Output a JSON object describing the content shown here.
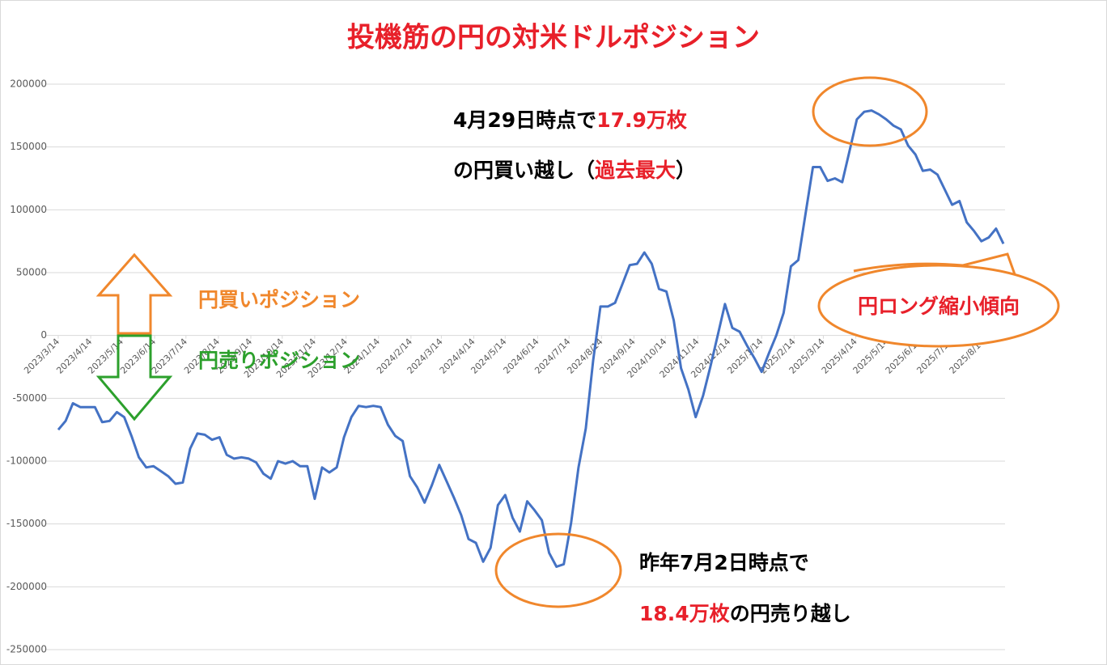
{
  "chart_data": {
    "type": "line",
    "title": "投機筋の円の対米ドルポジション",
    "x": [
      "2023/3/14",
      "2023/3/21",
      "2023/3/28",
      "2023/4/4",
      "2023/4/11",
      "2023/4/18",
      "2023/4/25",
      "2023/5/2",
      "2023/5/9",
      "2023/5/16",
      "2023/5/23",
      "2023/5/30",
      "2023/6/6",
      "2023/6/13",
      "2023/6/20",
      "2023/6/27",
      "2023/7/4",
      "2023/7/11",
      "2023/7/18",
      "2023/7/25",
      "2023/8/1",
      "2023/8/8",
      "2023/8/15",
      "2023/8/22",
      "2023/8/29",
      "2023/9/5",
      "2023/9/12",
      "2023/9/19",
      "2023/9/26",
      "2023/10/3",
      "2023/10/10",
      "2023/10/17",
      "2023/10/24",
      "2023/10/31",
      "2023/11/7",
      "2023/11/14",
      "2023/11/21",
      "2023/11/28",
      "2023/12/5",
      "2023/12/12",
      "2023/12/19",
      "2023/12/26",
      "2024/1/2",
      "2024/1/9",
      "2024/1/16",
      "2024/1/23",
      "2024/1/30",
      "2024/2/6",
      "2024/2/13",
      "2024/2/20",
      "2024/2/27",
      "2024/3/5",
      "2024/3/12",
      "2024/3/19",
      "2024/3/26",
      "2024/4/2",
      "2024/4/9",
      "2024/4/16",
      "2024/4/23",
      "2024/4/30",
      "2024/5/7",
      "2024/5/14",
      "2024/5/21",
      "2024/5/28",
      "2024/6/4",
      "2024/6/11",
      "2024/6/18",
      "2024/6/25",
      "2024/7/2",
      "2024/7/9",
      "2024/7/16",
      "2024/7/23",
      "2024/7/30",
      "2024/8/6",
      "2024/8/13",
      "2024/8/20",
      "2024/8/27",
      "2024/9/3",
      "2024/9/10",
      "2024/9/17",
      "2024/9/24",
      "2024/10/1",
      "2024/10/8",
      "2024/10/15",
      "2024/10/22",
      "2024/10/29",
      "2024/11/5",
      "2024/11/12",
      "2024/11/19",
      "2024/11/26",
      "2024/12/3",
      "2024/12/10",
      "2024/12/17",
      "2024/12/24",
      "2024/12/31",
      "2025/1/7",
      "2025/1/14",
      "2025/1/21",
      "2025/1/28",
      "2025/2/4",
      "2025/2/11",
      "2025/2/18",
      "2025/2/25",
      "2025/3/4",
      "2025/3/11",
      "2025/3/18",
      "2025/3/25",
      "2025/4/1",
      "2025/4/8",
      "2025/4/15",
      "2025/4/22",
      "2025/4/29",
      "2025/5/6",
      "2025/5/13",
      "2025/5/20",
      "2025/5/27",
      "2025/6/3",
      "2025/6/10",
      "2025/6/17",
      "2025/6/24",
      "2025/7/1",
      "2025/7/8",
      "2025/7/15",
      "2025/7/22",
      "2025/7/29",
      "2025/8/5",
      "2025/8/12",
      "2025/8/19",
      "2025/8/26",
      "2025/9/2"
    ],
    "series": [
      {
        "color": "#4472c4",
        "values": [
          -75000,
          -68000,
          -54000,
          -57000,
          -57000,
          -57000,
          -69000,
          -68000,
          -61000,
          -65000,
          -80000,
          -97000,
          -105000,
          -104000,
          -108000,
          -112000,
          -118000,
          -117000,
          -90000,
          -78000,
          -79000,
          -83000,
          -81000,
          -95000,
          -98000,
          -97000,
          -98000,
          -101000,
          -110000,
          -114000,
          -100000,
          -102000,
          -100000,
          -104000,
          -104000,
          -130000,
          -105000,
          -109000,
          -105000,
          -81000,
          -65000,
          -56000,
          -57000,
          -56000,
          -57000,
          -71000,
          -80000,
          -84000,
          -112000,
          -121000,
          -133000,
          -119000,
          -103000,
          -116000,
          -129000,
          -143000,
          -162000,
          -165000,
          -180000,
          -169000,
          -135000,
          -127000,
          -145000,
          -156000,
          -132000,
          -139000,
          -147000,
          -173000,
          -184000,
          -182000,
          -149000,
          -105000,
          -74000,
          -20000,
          23000,
          23000,
          26000,
          41000,
          56000,
          57000,
          66000,
          57000,
          37000,
          35000,
          12000,
          -26000,
          -43000,
          -65000,
          -48000,
          -25000,
          0,
          25000,
          6000,
          3000,
          -8000,
          -18000,
          -29000,
          -14000,
          0,
          18000,
          55000,
          60000,
          97000,
          134000,
          134000,
          123000,
          125000,
          122000,
          147000,
          172000,
          178000,
          179000,
          176000,
          172000,
          167000,
          164000,
          151000,
          144000,
          131000,
          132000,
          128000,
          116000,
          104000,
          107000,
          90000,
          83000,
          75000,
          78000,
          85000,
          73000
        ]
      }
    ],
    "xlim": [
      "2023/3/14",
      "2025/9/2"
    ],
    "xticks": [
      "2023/3/14",
      "2023/4/14",
      "2023/5/14",
      "2023/6/14",
      "2023/7/14",
      "2023/8/14",
      "2023/9/14",
      "2023/10/14",
      "2023/11/14",
      "2023/12/14",
      "2024/1/14",
      "2024/2/14",
      "2024/3/14",
      "2024/4/14",
      "2024/5/14",
      "2024/6/14",
      "2024/7/14",
      "2024/8/14",
      "2024/9/14",
      "2024/10/14",
      "2024/11/14",
      "2024/12/14",
      "2025/1/14",
      "2025/2/14",
      "2025/3/14",
      "2025/4/14",
      "2025/5/14",
      "2025/6/14",
      "2025/7/14",
      "2025/8/14"
    ],
    "ylim": [
      -250000,
      200000
    ],
    "yticks": [
      -250000,
      -200000,
      -150000,
      -100000,
      -50000,
      0,
      50000,
      100000,
      150000,
      200000
    ],
    "grid": true,
    "annotations": {
      "peak": [
        [
          "4月29日時点で",
          "17.9万枚"
        ],
        [
          "の円買い越し（",
          "過去最大",
          "）"
        ]
      ],
      "trough": [
        [
          "昨年7月2日時点で"
        ],
        [
          "18.4万枚",
          "の円売り越し"
        ]
      ],
      "long": "円買いポジション",
      "short": "円売りポジション",
      "trend": "円ロング縮小傾向"
    }
  }
}
